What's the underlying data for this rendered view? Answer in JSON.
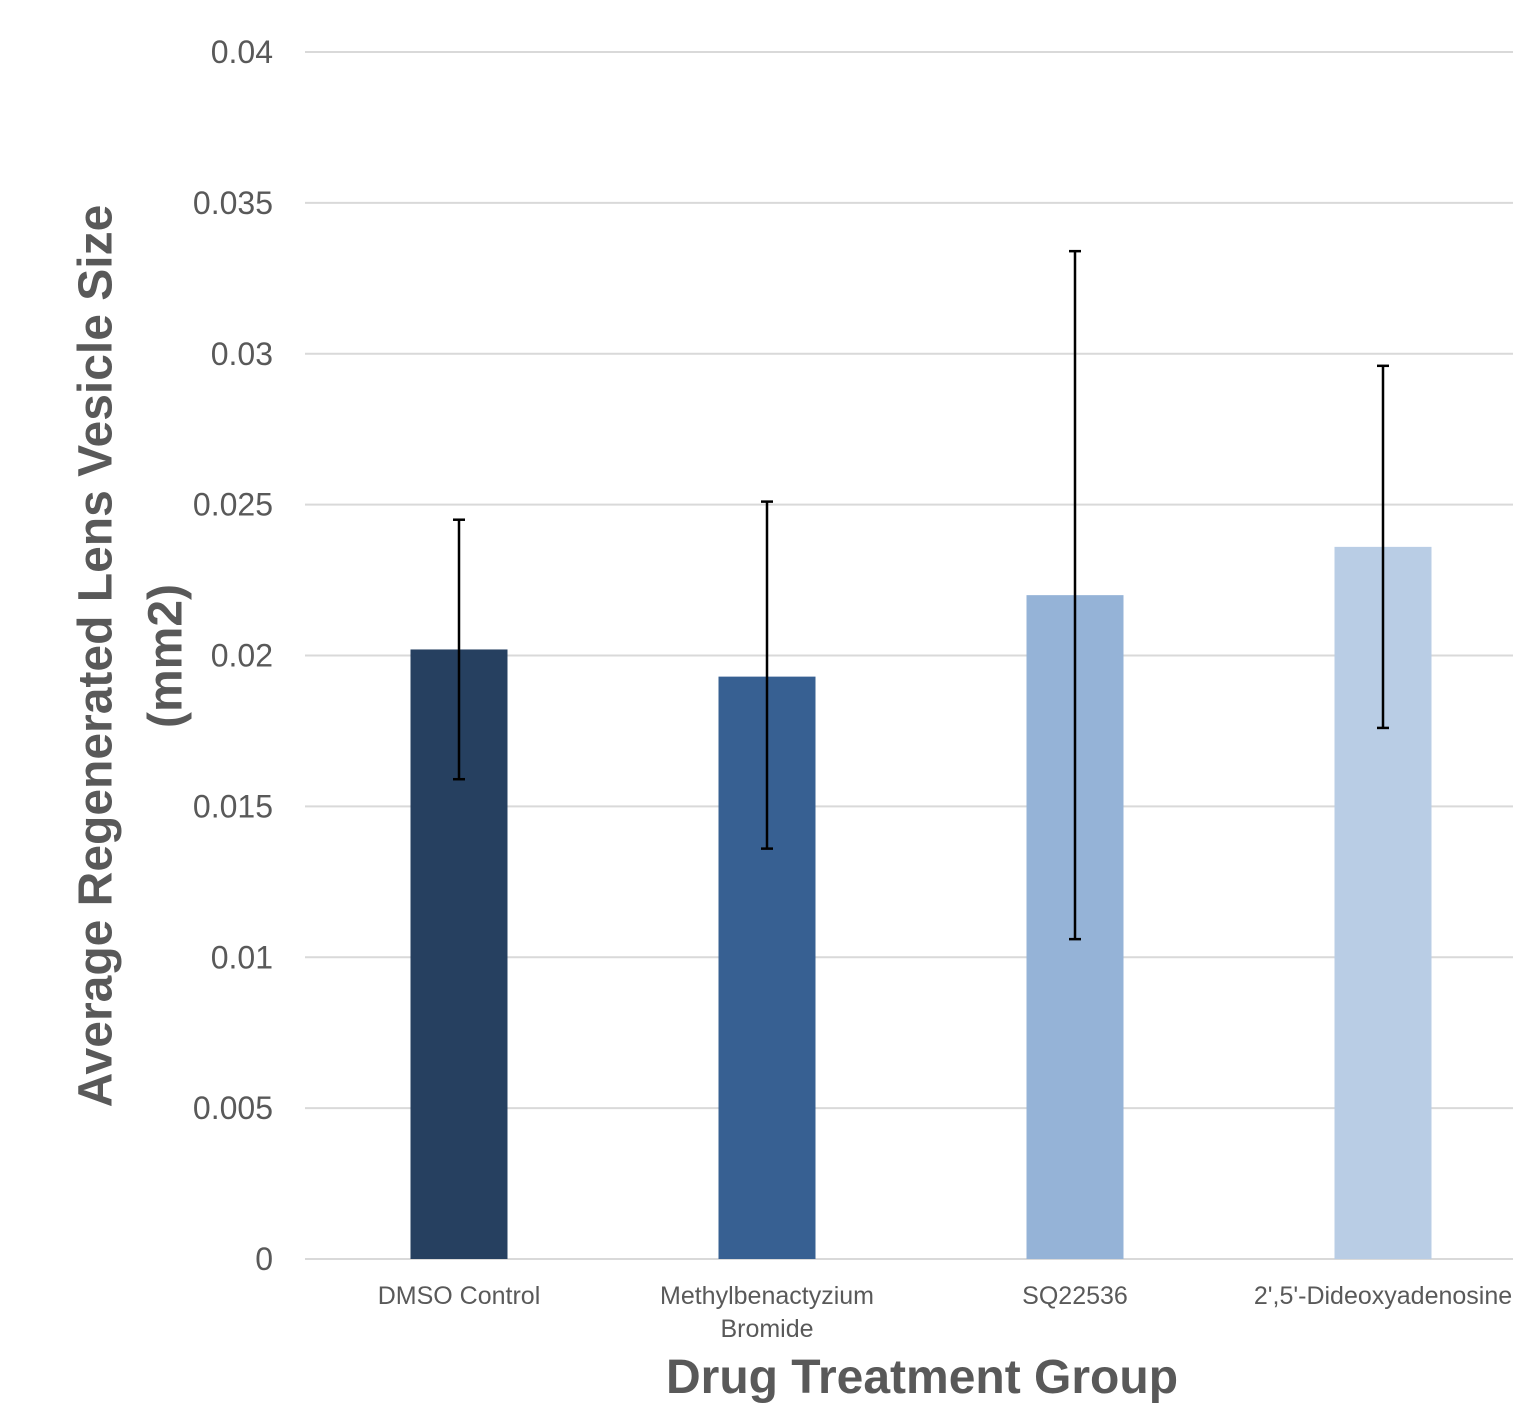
{
  "chart_data": {
    "type": "bar",
    "title": "",
    "xlabel": "Drug Treatment Group",
    "ylabel_lines": [
      "Average Regenerated Lens Vesicle Size",
      "(mm2)"
    ],
    "categories": [
      [
        "DMSO Control"
      ],
      [
        "Methylbenactyzium",
        "Bromide"
      ],
      [
        "SQ22536"
      ],
      [
        "2',5'-Dideoxyadenosine"
      ]
    ],
    "series": [
      {
        "values": [
          0.0202,
          0.0193,
          0.022,
          0.0236
        ],
        "error_upper": [
          0.0245,
          0.0251,
          0.0334,
          0.0296
        ],
        "error_lower": [
          0.0159,
          0.0136,
          0.0106,
          0.0176
        ],
        "colors": [
          "#264060",
          "#376092",
          "#95b3d7",
          "#b9cde5"
        ]
      }
    ],
    "ylim": [
      0,
      0.04
    ],
    "yticks": [
      0,
      0.005,
      0.01,
      0.015,
      0.02,
      0.025,
      0.03,
      0.035,
      0.04
    ],
    "ytick_labels": [
      "0",
      "0.005",
      "0.01",
      "0.015",
      "0.02",
      "0.025",
      "0.03",
      "0.035",
      "0.04"
    ],
    "grid": true,
    "legend": "none"
  }
}
